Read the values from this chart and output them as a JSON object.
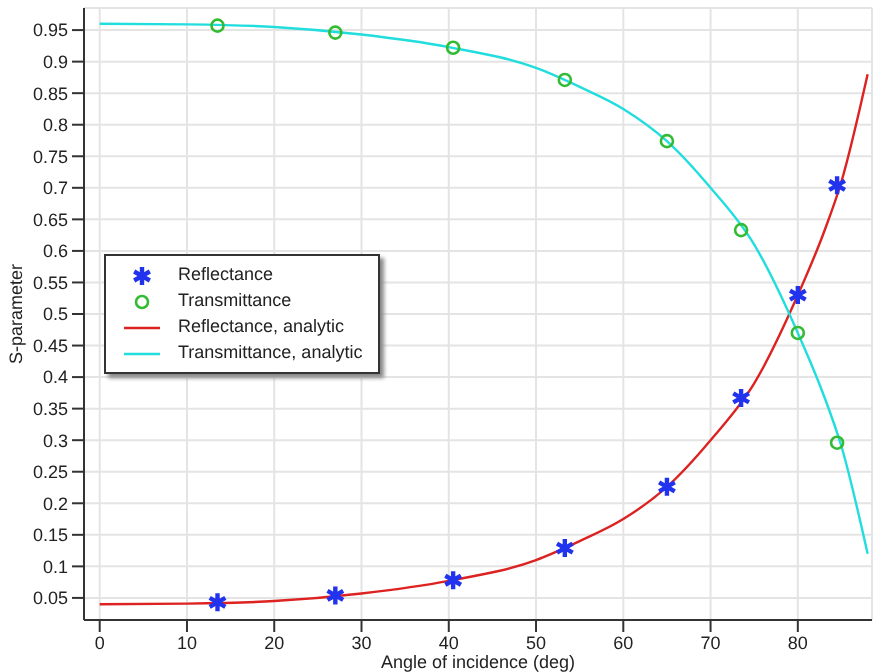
{
  "chart_data": {
    "type": "line",
    "xlabel": "Angle of incidence (deg)",
    "ylabel": "S-parameter",
    "xlim": [
      -1.8,
      88.5
    ],
    "xticks": [
      0,
      10,
      20,
      30,
      40,
      50,
      60,
      70,
      80
    ],
    "ylim": [
      0.015,
      0.985
    ],
    "yticks": [
      0.05,
      0.1,
      0.15,
      0.2,
      0.25,
      0.3,
      0.35,
      0.4,
      0.45,
      0.5,
      0.55,
      0.6,
      0.65,
      0.7,
      0.75,
      0.8,
      0.85,
      0.9,
      0.95
    ],
    "grid": true,
    "legend": "left",
    "series": [
      {
        "name": "Reflectance",
        "type": "scatter",
        "marker": "cross",
        "color": "#2233ee",
        "x": [
          13.5,
          27,
          40.5,
          53.3,
          65,
          73.5,
          80,
          84.5
        ],
        "values": [
          0.043,
          0.054,
          0.078,
          0.129,
          0.226,
          0.367,
          0.53,
          0.704
        ]
      },
      {
        "name": "Transmittance",
        "type": "scatter",
        "marker": "circle",
        "color": "#33bb33",
        "x": [
          13.5,
          27,
          40.5,
          53.3,
          65,
          73.5,
          80,
          84.5
        ],
        "values": [
          0.957,
          0.946,
          0.922,
          0.871,
          0.774,
          0.633,
          0.47,
          0.296
        ]
      },
      {
        "name": "Reflectance, analytic",
        "marker": "none",
        "color": "#dd2222",
        "x": [
          0,
          10,
          20,
          30,
          40,
          50,
          55,
          60,
          65,
          70,
          75,
          80,
          83,
          85,
          88
        ],
        "values": [
          0.04,
          0.041,
          0.045,
          0.057,
          0.077,
          0.11,
          0.14,
          0.175,
          0.226,
          0.3,
          0.39,
          0.53,
          0.63,
          0.71,
          0.88
        ]
      },
      {
        "name": "Transmittance, analytic",
        "marker": "none",
        "color": "#22dddd",
        "x": [
          0,
          10,
          20,
          30,
          40,
          50,
          55,
          60,
          65,
          70,
          75,
          80,
          83,
          85,
          88
        ],
        "values": [
          0.96,
          0.959,
          0.955,
          0.943,
          0.923,
          0.89,
          0.86,
          0.825,
          0.774,
          0.7,
          0.61,
          0.47,
          0.37,
          0.29,
          0.12
        ]
      }
    ]
  }
}
